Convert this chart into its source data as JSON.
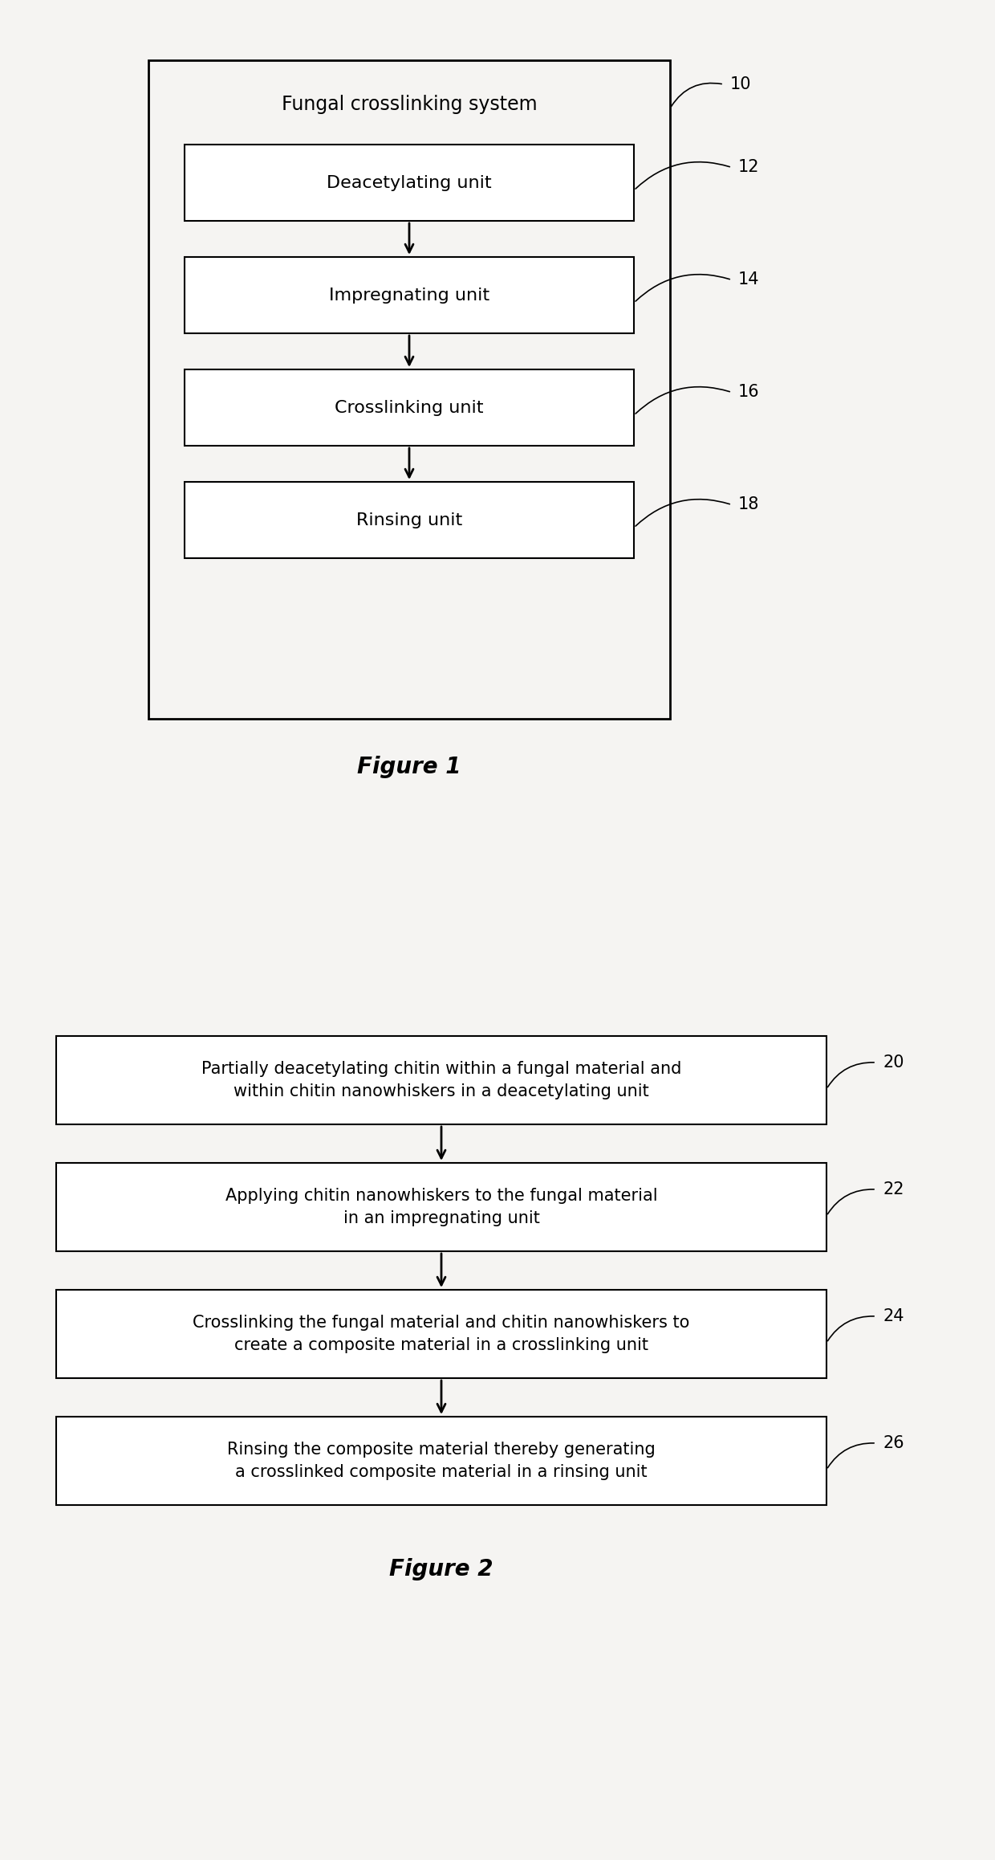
{
  "fig1": {
    "title": "Figure 1",
    "outer_box_label": "Fungal crosslinking system",
    "outer_box_num": "10",
    "boxes": [
      {
        "label": "Deacetylating unit",
        "num": "12"
      },
      {
        "label": "Impregnating unit",
        "num": "14"
      },
      {
        "label": "Crosslinking unit",
        "num": "16"
      },
      {
        "label": "Rinsing unit",
        "num": "18"
      }
    ]
  },
  "fig2": {
    "title": "Figure 2",
    "boxes": [
      {
        "label": "Partially deacetylating chitin within a fungal material and\nwithin chitin nanowhiskers in a deacetylating unit",
        "num": "20"
      },
      {
        "label": "Applying chitin nanowhiskers to the fungal material\nin an impregnating unit",
        "num": "22"
      },
      {
        "label": "Crosslinking the fungal material and chitin nanowhiskers to\ncreate a composite material in a crosslinking unit",
        "num": "24"
      },
      {
        "label": "Rinsing the composite material thereby generating\na crosslinked composite material in a rinsing unit",
        "num": "26"
      }
    ]
  },
  "bg_color": "#f5f4f2",
  "box_facecolor": "#ffffff",
  "box_edgecolor": "#000000",
  "text_color": "#000000",
  "arrow_color": "#000000",
  "fig1_title_fontsize": 20,
  "fig2_title_fontsize": 20,
  "fig1_inner_fontsize": 16,
  "fig2_inner_fontsize": 15,
  "fig1_outer_label_fontsize": 17,
  "ref_num_fontsize": 15
}
